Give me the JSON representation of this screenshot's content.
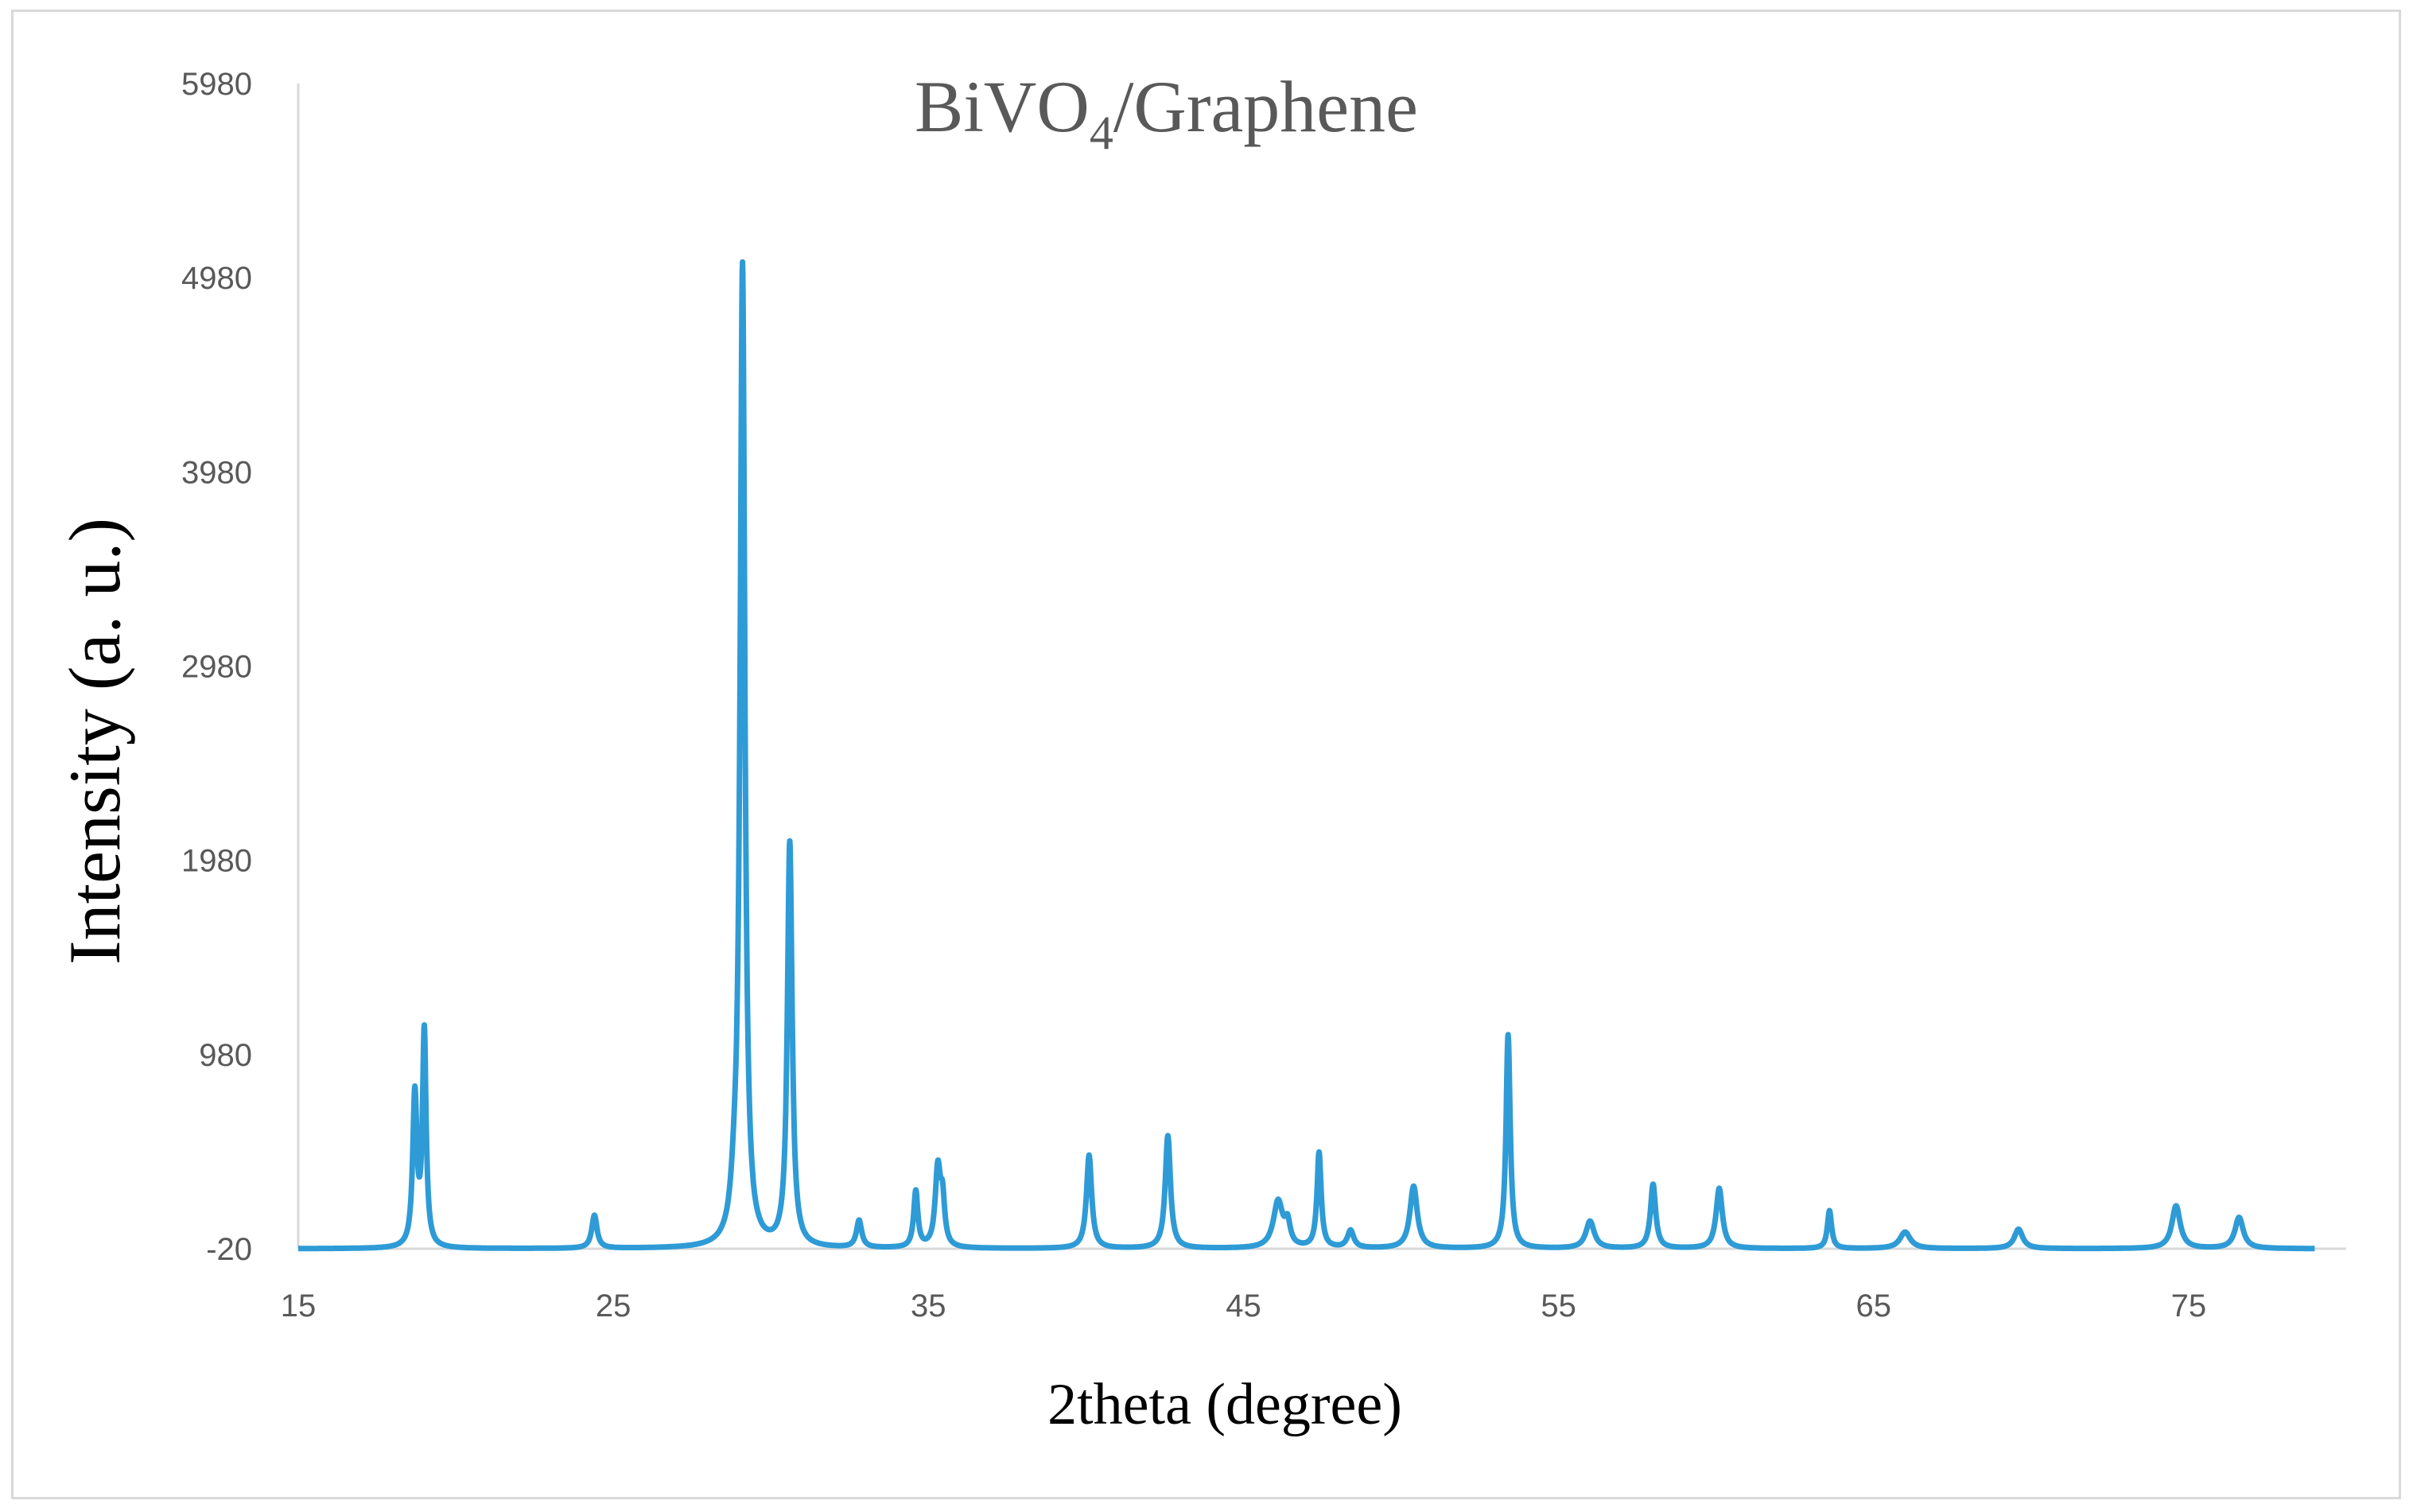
{
  "chart_data": {
    "type": "line",
    "title": "BiVO",
    "title_subscript": "4",
    "title_suffix": "/Graphene",
    "xlabel": "2theta (degree)",
    "ylabel": "Intensity (a. u.)",
    "xlim": [
      15,
      80
    ],
    "ylim": [
      -20,
      5980
    ],
    "xticks": [
      "15",
      "25",
      "35",
      "45",
      "55",
      "65",
      "75"
    ],
    "yticks": [
      "-20",
      "980",
      "1980",
      "2980",
      "3980",
      "4980",
      "5980"
    ],
    "grid": false,
    "legend": "none",
    "baseline": -20,
    "x_end": 79,
    "series_color": "#2e9bd6",
    "peaks": [
      {
        "x": 18.7,
        "y": 760,
        "w": 0.08
      },
      {
        "x": 19.0,
        "y": 1080,
        "w": 0.07
      },
      {
        "x": 24.4,
        "y": 150,
        "w": 0.1
      },
      {
        "x": 28.85,
        "y": 160,
        "w": 0.14
      },
      {
        "x": 29.1,
        "y": 5010,
        "w": 0.09
      },
      {
        "x": 30.6,
        "y": 2060,
        "w": 0.09
      },
      {
        "x": 32.8,
        "y": 120,
        "w": 0.1
      },
      {
        "x": 34.6,
        "y": 270,
        "w": 0.08
      },
      {
        "x": 35.3,
        "y": 380,
        "w": 0.1
      },
      {
        "x": 35.45,
        "y": 200,
        "w": 0.08
      },
      {
        "x": 40.1,
        "y": 460,
        "w": 0.1
      },
      {
        "x": 42.6,
        "y": 560,
        "w": 0.1
      },
      {
        "x": 46.1,
        "y": 220,
        "w": 0.18
      },
      {
        "x": 46.4,
        "y": 90,
        "w": 0.1
      },
      {
        "x": 47.4,
        "y": 470,
        "w": 0.08
      },
      {
        "x": 48.4,
        "y": 70,
        "w": 0.12
      },
      {
        "x": 50.4,
        "y": 300,
        "w": 0.14
      },
      {
        "x": 53.4,
        "y": 1080,
        "w": 0.08
      },
      {
        "x": 56.0,
        "y": 120,
        "w": 0.16
      },
      {
        "x": 58.0,
        "y": 310,
        "w": 0.1
      },
      {
        "x": 60.1,
        "y": 290,
        "w": 0.12
      },
      {
        "x": 63.6,
        "y": 175,
        "w": 0.08
      },
      {
        "x": 66.0,
        "y": 65,
        "w": 0.2
      },
      {
        "x": 69.6,
        "y": 80,
        "w": 0.16
      },
      {
        "x": 74.6,
        "y": 200,
        "w": 0.16
      },
      {
        "x": 76.6,
        "y": 140,
        "w": 0.16
      }
    ]
  }
}
